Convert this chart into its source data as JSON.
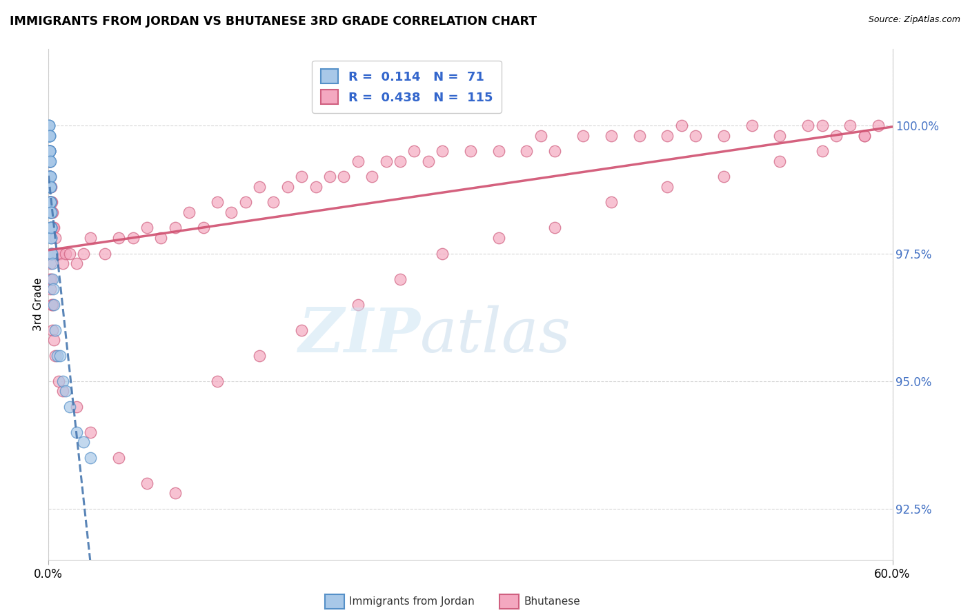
{
  "title": "IMMIGRANTS FROM JORDAN VS BHUTANESE 3RD GRADE CORRELATION CHART",
  "source": "Source: ZipAtlas.com",
  "ylabel": "3rd Grade",
  "y_ticks": [
    92.5,
    95.0,
    97.5,
    100.0
  ],
  "y_tick_labels": [
    "92.5%",
    "95.0%",
    "97.5%",
    "100.0%"
  ],
  "x_lim": [
    0.0,
    60.0
  ],
  "y_lim": [
    91.5,
    101.5
  ],
  "jordan_R": 0.114,
  "jordan_N": 71,
  "bhutanese_R": 0.438,
  "bhutanese_N": 115,
  "jordan_color": "#a8c8e8",
  "bhutanese_color": "#f4a8c0",
  "jordan_edge_color": "#5590c8",
  "bhutanese_edge_color": "#d06080",
  "jordan_line_color": "#4878b0",
  "bhutanese_line_color": "#d05070",
  "legend_label_jordan": "Immigrants from Jordan",
  "legend_label_bhutanese": "Bhutanese",
  "jordan_x": [
    0.02,
    0.03,
    0.03,
    0.04,
    0.04,
    0.04,
    0.05,
    0.05,
    0.05,
    0.05,
    0.06,
    0.06,
    0.06,
    0.06,
    0.06,
    0.07,
    0.07,
    0.07,
    0.07,
    0.08,
    0.08,
    0.08,
    0.08,
    0.08,
    0.09,
    0.09,
    0.09,
    0.09,
    0.1,
    0.1,
    0.1,
    0.1,
    0.1,
    0.11,
    0.11,
    0.11,
    0.12,
    0.12,
    0.12,
    0.12,
    0.13,
    0.13,
    0.13,
    0.14,
    0.14,
    0.15,
    0.15,
    0.15,
    0.16,
    0.16,
    0.17,
    0.17,
    0.18,
    0.18,
    0.2,
    0.2,
    0.22,
    0.25,
    0.28,
    0.3,
    0.35,
    0.4,
    0.5,
    0.6,
    0.8,
    1.0,
    1.2,
    1.5,
    2.0,
    2.5,
    3.0
  ],
  "jordan_y": [
    99.8,
    100.0,
    99.5,
    99.5,
    99.8,
    100.0,
    99.3,
    99.5,
    99.8,
    100.0,
    99.0,
    99.3,
    99.5,
    99.5,
    99.8,
    99.0,
    99.3,
    99.5,
    99.8,
    98.8,
    99.0,
    99.3,
    99.5,
    99.8,
    98.8,
    99.0,
    99.3,
    99.5,
    98.5,
    98.8,
    99.0,
    99.3,
    99.5,
    98.5,
    98.8,
    99.0,
    98.5,
    98.8,
    99.0,
    99.3,
    98.3,
    98.5,
    98.8,
    98.3,
    98.5,
    98.0,
    98.3,
    98.5,
    98.0,
    98.3,
    98.0,
    98.3,
    97.8,
    98.0,
    97.8,
    98.0,
    97.5,
    97.5,
    97.3,
    97.0,
    96.8,
    96.5,
    96.0,
    95.5,
    95.5,
    95.0,
    94.8,
    94.5,
    94.0,
    93.8,
    93.5
  ],
  "bhutanese_x": [
    0.05,
    0.05,
    0.06,
    0.06,
    0.07,
    0.07,
    0.08,
    0.08,
    0.09,
    0.09,
    0.1,
    0.1,
    0.1,
    0.12,
    0.12,
    0.15,
    0.15,
    0.18,
    0.18,
    0.2,
    0.2,
    0.25,
    0.25,
    0.3,
    0.3,
    0.35,
    0.4,
    0.5,
    0.6,
    0.8,
    1.0,
    1.2,
    1.5,
    2.0,
    2.5,
    3.0,
    4.0,
    5.0,
    6.0,
    7.0,
    8.0,
    9.0,
    10.0,
    11.0,
    12.0,
    13.0,
    14.0,
    15.0,
    16.0,
    17.0,
    18.0,
    19.0,
    20.0,
    21.0,
    22.0,
    23.0,
    24.0,
    25.0,
    26.0,
    27.0,
    28.0,
    30.0,
    32.0,
    34.0,
    35.0,
    36.0,
    38.0,
    40.0,
    42.0,
    44.0,
    45.0,
    46.0,
    48.0,
    50.0,
    52.0,
    54.0,
    55.0,
    56.0,
    57.0,
    58.0,
    59.0,
    0.08,
    0.12,
    0.15,
    0.2,
    0.25,
    0.3,
    0.4,
    0.5,
    0.7,
    1.0,
    2.0,
    3.0,
    5.0,
    7.0,
    9.0,
    12.0,
    15.0,
    18.0,
    22.0,
    25.0,
    28.0,
    32.0,
    36.0,
    40.0,
    44.0,
    48.0,
    52.0,
    55.0,
    58.0,
    0.05,
    0.1,
    0.15,
    0.2,
    0.3
  ],
  "bhutanese_y": [
    99.5,
    99.3,
    99.5,
    99.3,
    99.5,
    99.3,
    99.3,
    99.0,
    99.3,
    99.0,
    99.0,
    98.8,
    98.5,
    99.0,
    98.8,
    98.8,
    98.5,
    98.8,
    98.5,
    98.5,
    98.3,
    98.5,
    98.3,
    98.3,
    98.0,
    98.0,
    98.0,
    97.8,
    97.5,
    97.5,
    97.3,
    97.5,
    97.5,
    97.3,
    97.5,
    97.8,
    97.5,
    97.8,
    97.8,
    98.0,
    97.8,
    98.0,
    98.3,
    98.0,
    98.5,
    98.3,
    98.5,
    98.8,
    98.5,
    98.8,
    99.0,
    98.8,
    99.0,
    99.0,
    99.3,
    99.0,
    99.3,
    99.3,
    99.5,
    99.3,
    99.5,
    99.5,
    99.5,
    99.5,
    99.8,
    99.5,
    99.8,
    99.8,
    99.8,
    99.8,
    100.0,
    99.8,
    99.8,
    100.0,
    99.8,
    100.0,
    100.0,
    99.8,
    100.0,
    99.8,
    100.0,
    97.0,
    97.3,
    96.8,
    97.0,
    96.5,
    96.0,
    95.8,
    95.5,
    95.0,
    94.8,
    94.5,
    94.0,
    93.5,
    93.0,
    92.8,
    95.0,
    95.5,
    96.0,
    96.5,
    97.0,
    97.5,
    97.8,
    98.0,
    98.5,
    98.8,
    99.0,
    99.3,
    99.5,
    99.8,
    99.0,
    98.5,
    98.0,
    97.5,
    96.5
  ]
}
